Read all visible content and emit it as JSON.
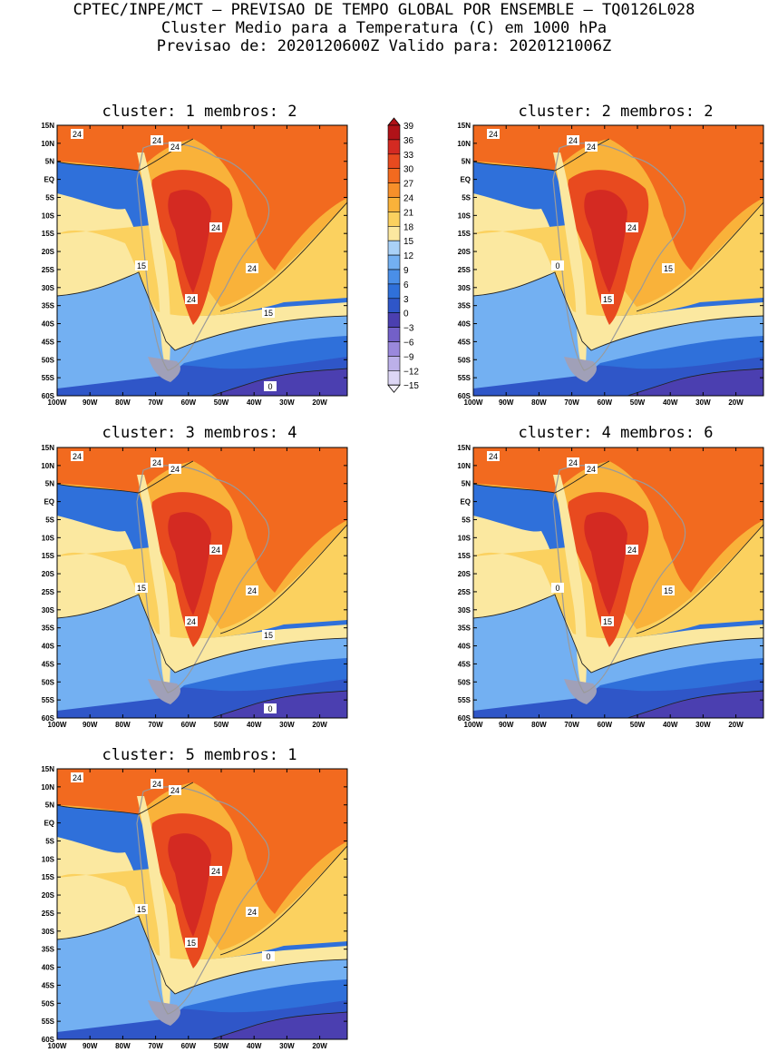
{
  "header": {
    "line1": "CPTEC/INPE/MCT – PREVISAO DE TEMPO GLOBAL POR ENSEMBLE – TQ0126L028",
    "line2": "Cluster Medio para a Temperatura (C) em 1000 hPa",
    "line3": "Previsao de: 2020120600Z   Valido para: 2020121006Z"
  },
  "lat_labels": [
    "15N",
    "10N",
    "5N",
    "EQ",
    "5S",
    "10S",
    "15S",
    "20S",
    "25S",
    "30S",
    "35S",
    "40S",
    "45S",
    "50S",
    "55S",
    "60S"
  ],
  "lon_labels": [
    "100W",
    "90W",
    "80W",
    "70W",
    "60W",
    "50W",
    "40W",
    "30W",
    "20W"
  ],
  "colorbar": {
    "labels": [
      "39",
      "36",
      "33",
      "30",
      "27",
      "24",
      "21",
      "18",
      "15",
      "12",
      "9",
      "6",
      "3",
      "0",
      "−3",
      "−6",
      "−9",
      "−12",
      "−15"
    ],
    "colors": [
      "#b01218",
      "#d42a22",
      "#e84a1f",
      "#f26a1f",
      "#f7902a",
      "#f9b23a",
      "#fbd15f",
      "#fbe8a0",
      "#a9d1f7",
      "#73b0f2",
      "#4a8fe8",
      "#2f70da",
      "#2f56c8",
      "#4b3fb0",
      "#7360c8",
      "#9a88dc",
      "#bcb0e9",
      "#ddd6f5"
    ]
  },
  "clusters": [
    {
      "title": "cluster: 1   membros: 2",
      "contours": [
        "24",
        "24",
        "24",
        "24",
        "24",
        "24",
        "15",
        "15",
        "0"
      ]
    },
    {
      "title": "cluster: 2   membros: 2",
      "contours": [
        "24",
        "24",
        "24",
        "24",
        "15",
        "15",
        "0"
      ]
    },
    {
      "title": "cluster: 3   membros: 4",
      "contours": [
        "24",
        "24",
        "24",
        "24",
        "24",
        "24",
        "15",
        "15",
        "0"
      ]
    },
    {
      "title": "cluster: 4   membros: 6",
      "contours": [
        "24",
        "24",
        "24",
        "24",
        "15",
        "15",
        "0"
      ]
    },
    {
      "title": "cluster: 5   membros: 1",
      "contours": [
        "24",
        "24",
        "24",
        "24",
        "24",
        "15",
        "15",
        "0"
      ]
    }
  ]
}
